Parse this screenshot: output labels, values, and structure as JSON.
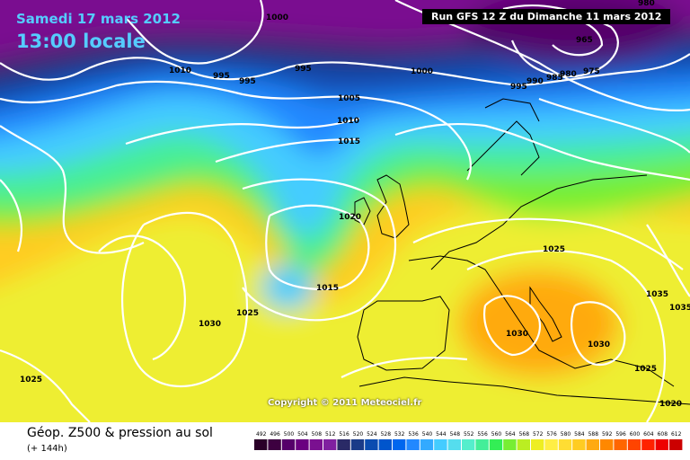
{
  "header": {
    "date": "Samedi 17 mars 2012",
    "time": "13:00 locale",
    "run": "Run GFS 12 Z du Dimanche 11 mars 2012"
  },
  "copyright": "Copyright © 2011 Meteociel.fr",
  "legend": {
    "title": "Géop. Z500 & pression au sol",
    "subtitle": "(+ 144h)",
    "scale_values": [
      "492",
      "496",
      "500",
      "504",
      "508",
      "512",
      "516",
      "520",
      "524",
      "528",
      "532",
      "536",
      "540",
      "544",
      "548",
      "552",
      "556",
      "560",
      "564",
      "568",
      "572",
      "576",
      "580",
      "584",
      "588",
      "592",
      "596",
      "600",
      "604",
      "608",
      "612"
    ],
    "scale_colors": [
      "#2a0028",
      "#3d0040",
      "#55006a",
      "#6a0080",
      "#7a1090",
      "#8020a0",
      "#2a2a66",
      "#1a3b88",
      "#0a4cb0",
      "#0055cc",
      "#0066ee",
      "#2288ff",
      "#33aaff",
      "#44ccff",
      "#55ddee",
      "#55eecc",
      "#44ee99",
      "#33ee55",
      "#77ee33",
      "#bbee22",
      "#eeee22",
      "#ffee44",
      "#ffdd33",
      "#ffcc22",
      "#ffaa11",
      "#ff8800",
      "#ff6600",
      "#ff4400",
      "#ff2200",
      "#ee0000",
      "#cc0000"
    ]
  },
  "isobar_labels": [
    "1000",
    "995",
    "995",
    "1010",
    "1000",
    "995",
    "1005",
    "1010",
    "1015",
    "980",
    "965",
    "975",
    "980",
    "985",
    "990",
    "995",
    "1020",
    "1015",
    "1025",
    "1030",
    "1025",
    "1025",
    "1030",
    "1030",
    "1035",
    "1035",
    "1025",
    "1020"
  ]
}
